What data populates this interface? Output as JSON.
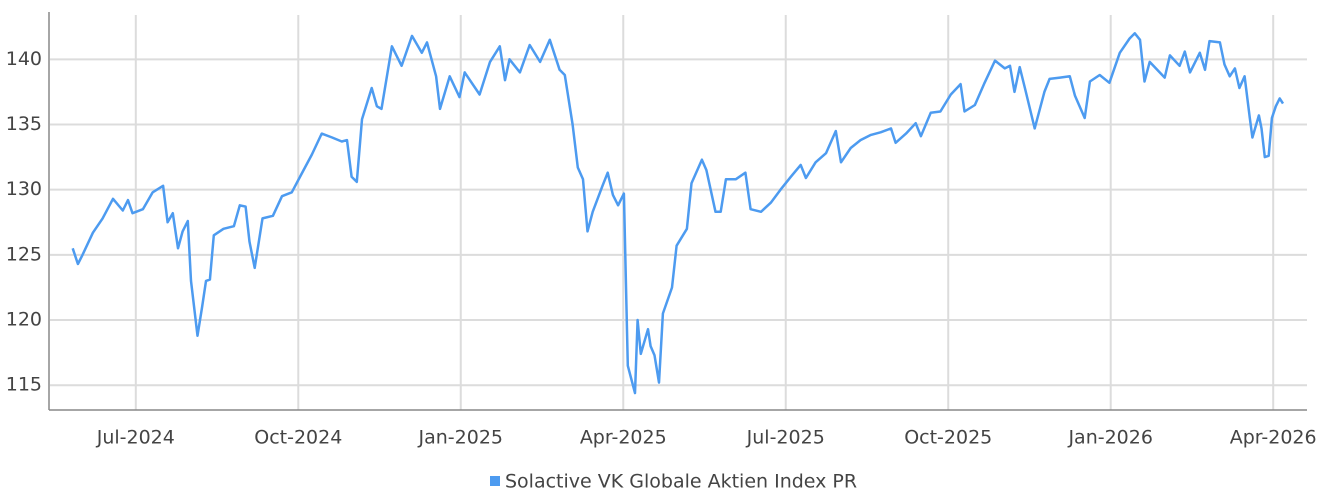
{
  "chart_data": {
    "type": "line",
    "x": [
      2024.403,
      2024.411,
      2024.418,
      2024.434,
      2024.449,
      2024.465,
      2024.48,
      2024.488,
      2024.495,
      2024.511,
      2024.526,
      2024.542,
      2024.549,
      2024.557,
      2024.565,
      2024.572,
      2024.58,
      2024.585,
      2024.595,
      2024.602,
      2024.608,
      2024.614,
      2024.62,
      2024.635,
      2024.651,
      2024.66,
      2024.669,
      2024.675,
      2024.683,
      2024.695,
      2024.711,
      2024.725,
      2024.74,
      2024.755,
      2024.771,
      2024.786,
      2024.802,
      2024.817,
      2024.825,
      2024.832,
      2024.84,
      2024.848,
      2024.863,
      2024.871,
      2024.878,
      2024.894,
      2024.909,
      2024.925,
      2024.94,
      2024.948,
      2024.962,
      2024.968,
      2024.983,
      2024.998,
      2025.006,
      2025.029,
      2025.045,
      2025.06,
      2025.068,
      2025.075,
      2025.091,
      2025.106,
      2025.122,
      2025.137,
      2025.152,
      2025.16,
      2025.172,
      2025.18,
      2025.188,
      2025.195,
      2025.203,
      2025.218,
      2025.226,
      2025.234,
      2025.242,
      2025.251,
      2025.257,
      2025.268,
      2025.272,
      2025.277,
      2025.288,
      2025.292,
      2025.298,
      2025.305,
      2025.311,
      2025.325,
      2025.332,
      2025.348,
      2025.355,
      2025.371,
      2025.378,
      2025.392,
      2025.4,
      2025.408,
      2025.423,
      2025.438,
      2025.446,
      2025.462,
      2025.477,
      2025.492,
      2025.508,
      2025.523,
      2025.531,
      2025.546,
      2025.562,
      2025.577,
      2025.585,
      2025.6,
      2025.615,
      2025.631,
      2025.646,
      2025.662,
      2025.669,
      2025.685,
      2025.7,
      2025.708,
      2025.723,
      2025.738,
      2025.754,
      2025.769,
      2025.775,
      2025.791,
      2025.806,
      2025.822,
      2025.837,
      2025.845,
      2025.852,
      2025.86,
      2025.868,
      2025.883,
      2025.898,
      2025.906,
      2025.922,
      2025.937,
      2025.945,
      2025.96,
      2025.968,
      2025.983,
      2025.998,
      2026.014,
      2026.029,
      2026.037,
      2026.045,
      2026.052,
      2026.06,
      2026.083,
      2026.091,
      2026.106,
      2026.114,
      2026.122,
      2026.137,
      2026.145,
      2026.152,
      2026.168,
      2026.175,
      2026.183,
      2026.191,
      2026.198,
      2026.206,
      2026.214,
      2026.218,
      2026.228,
      2026.232,
      2026.237,
      2026.243,
      2026.248,
      2026.254,
      2026.26,
      2026.265
    ],
    "series": [
      {
        "name": "Solactive VK Globale Aktien Index PR",
        "color": "#4d9bf0",
        "values": [
          125.5,
          124.3,
          125,
          126.7,
          127.8,
          129.3,
          128.4,
          129.2,
          128.2,
          128.5,
          129.8,
          130.3,
          127.5,
          128.2,
          125.5,
          126.8,
          127.6,
          123,
          118.8,
          121,
          123,
          123.1,
          126.5,
          127,
          127.2,
          128.8,
          128.7,
          126,
          124,
          127.8,
          128,
          129.5,
          129.8,
          131.2,
          132.7,
          134.3,
          134,
          133.7,
          133.8,
          131,
          130.6,
          135.4,
          137.8,
          136.4,
          136.2,
          141,
          139.5,
          141.8,
          140.5,
          141.3,
          138.7,
          136.2,
          138.7,
          137.1,
          139,
          137.3,
          139.8,
          141,
          138.4,
          140,
          139,
          141.1,
          139.8,
          141.5,
          139.2,
          138.8,
          135,
          131.7,
          130.8,
          126.8,
          128.3,
          130.3,
          131.3,
          129.6,
          128.8,
          129.7,
          116.5,
          114.4,
          120,
          117.4,
          119.3,
          118,
          117.3,
          115.2,
          120.5,
          122.5,
          125.7,
          127,
          130.5,
          132.3,
          131.5,
          128.3,
          128.3,
          130.8,
          130.8,
          131.3,
          128.5,
          128.3,
          129,
          130,
          131,
          131.9,
          130.9,
          132.1,
          132.8,
          134.5,
          132.1,
          133.2,
          133.8,
          134.2,
          134.4,
          134.7,
          133.6,
          134.3,
          135.1,
          134.1,
          135.9,
          136,
          137.3,
          138.1,
          136,
          136.5,
          138.2,
          139.9,
          139.3,
          139.5,
          137.5,
          139.4,
          137.8,
          134.7,
          137.5,
          138.5,
          138.6,
          138.7,
          137.2,
          135.5,
          138.3,
          138.8,
          138.2,
          140.5,
          141.6,
          142,
          141.5,
          138.3,
          139.8,
          138.6,
          140.3,
          139.5,
          140.6,
          139,
          140.5,
          139.2,
          141.4,
          141.3,
          139.6,
          138.7,
          139.3,
          137.8,
          138.7,
          135.5,
          134,
          135.7,
          134.7,
          132.5,
          132.6,
          135.5,
          136.4,
          137,
          136.6
        ]
      }
    ],
    "xlim": [
      2024.368,
      2026.302
    ],
    "xticks": [
      {
        "value": 2024.5,
        "label": "Jul-2024"
      },
      {
        "value": 2024.75,
        "label": "Oct-2024"
      },
      {
        "value": 2025,
        "label": "Jan-2025"
      },
      {
        "value": 2025.25,
        "label": "Apr-2025"
      },
      {
        "value": 2025.5,
        "label": "Jul-2025"
      },
      {
        "value": 2025.75,
        "label": "Oct-2025"
      },
      {
        "value": 2026,
        "label": "Jan-2026"
      },
      {
        "value": 2026.25,
        "label": "Apr-2026"
      }
    ],
    "ylim": [
      113.1,
      143.4
    ],
    "yticks": [
      115,
      120,
      125,
      130,
      135,
      140
    ],
    "grid": true,
    "legend": "bottom"
  }
}
